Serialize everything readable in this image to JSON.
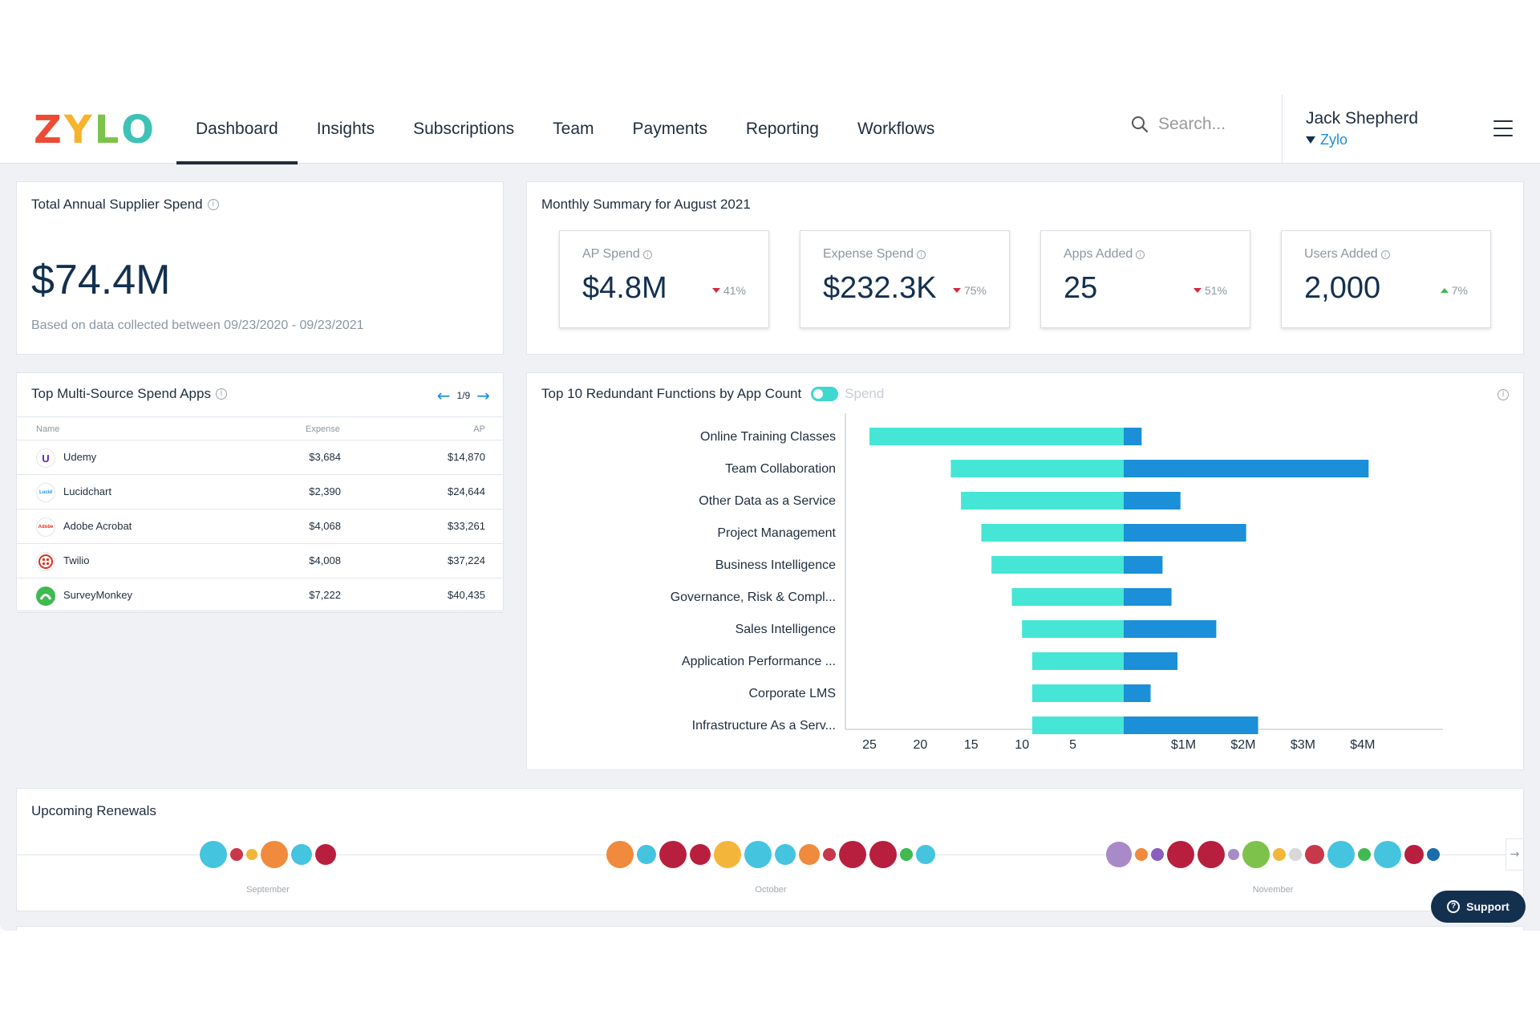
{
  "brand": {
    "logo_letters": [
      {
        "char": "Z",
        "color": "#ec4b35"
      },
      {
        "char": "Y",
        "color": "#f6b32b"
      },
      {
        "char": "L",
        "color": "#7dc24b"
      },
      {
        "char": "O",
        "color": "#3ec2b5"
      }
    ]
  },
  "nav": {
    "tabs": [
      {
        "label": "Dashboard",
        "active": true
      },
      {
        "label": "Insights"
      },
      {
        "label": "Subscriptions"
      },
      {
        "label": "Team"
      },
      {
        "label": "Payments"
      },
      {
        "label": "Reporting"
      },
      {
        "label": "Workflows"
      }
    ],
    "search_placeholder": "Search...",
    "user_name": "Jack Shepherd",
    "org_name": "Zylo"
  },
  "total_spend": {
    "title": "Total Annual Supplier Spend",
    "value": "$74.4M",
    "note": "Based on data collected between 09/23/2020 - 09/23/2021"
  },
  "monthly": {
    "title": "Monthly Summary for August 2021",
    "kpis": [
      {
        "label": "AP Spend",
        "value": "$4.8M",
        "delta": "41%",
        "direction": "down"
      },
      {
        "label": "Expense Spend",
        "value": "$232.3K",
        "delta": "75%",
        "direction": "down"
      },
      {
        "label": "Apps Added",
        "value": "25",
        "delta": "51%",
        "direction": "down"
      },
      {
        "label": "Users Added",
        "value": "2,000",
        "delta": "7%",
        "direction": "up"
      }
    ]
  },
  "multi_source": {
    "title": "Top Multi-Source Spend Apps",
    "pager": "1/9",
    "columns": [
      "Name",
      "Expense",
      "AP"
    ],
    "rows": [
      {
        "name": "Udemy",
        "expense": "$3,684",
        "ap": "$14,870",
        "icon": "udemy-icon",
        "icon_text": "U",
        "icon_color": "#5624d0"
      },
      {
        "name": "Lucidchart",
        "expense": "$2,390",
        "ap": "$24,644",
        "icon": "lucidchart-icon",
        "icon_text": "Lucid",
        "icon_color": "#1b8fd8"
      },
      {
        "name": "Adobe Acrobat",
        "expense": "$4,068",
        "ap": "$33,261",
        "icon": "adobe-icon",
        "icon_text": "Adobe",
        "icon_color": "#e0301e"
      },
      {
        "name": "Twilio",
        "expense": "$4,008",
        "ap": "$37,224",
        "icon": "twilio-icon",
        "icon_text": "",
        "icon_color": "#e0301e"
      },
      {
        "name": "SurveyMonkey",
        "expense": "$7,222",
        "ap": "$40,435",
        "icon": "surveymonkey-icon",
        "icon_text": "",
        "icon_color": "#3fb950"
      }
    ]
  },
  "redundant": {
    "title": "Top 10 Redundant Functions by App Count",
    "toggle_label": "Spend"
  },
  "chart_data": {
    "type": "bar",
    "orientation": "horizontal",
    "layout": "butterfly",
    "categories": [
      "Online Training Classes",
      "Team Collaboration",
      "Other Data as a Service",
      "Project Management",
      "Business Intelligence",
      "Governance, Risk & Compl...",
      "Sales Intelligence",
      "Application Performance ...",
      "Corporate LMS",
      "Infrastructure As a Serv..."
    ],
    "series": [
      {
        "values": [
          25,
          17,
          16,
          14,
          13,
          11,
          10,
          9,
          9,
          9
        ],
        "color": "#45e6d6",
        "side": "left"
      },
      {
        "values": [
          0.3,
          4.1,
          0.95,
          2.05,
          0.65,
          0.8,
          1.55,
          0.9,
          0.45,
          2.25
        ],
        "color": "#1b8fd8",
        "side": "right"
      }
    ],
    "left_axis": {
      "ticks": [
        25,
        20,
        15,
        10,
        5
      ],
      "tick_labels": [
        "25",
        "20",
        "15",
        "10",
        "5"
      ],
      "max": 25
    },
    "right_axis": {
      "ticks": [
        1,
        2,
        3,
        4
      ],
      "tick_labels": [
        "$1M",
        "$2M",
        "$3M",
        "$4M"
      ],
      "max": 4.7
    }
  },
  "renewals": {
    "title": "Upcoming Renewals",
    "months": [
      "September",
      "October",
      "November"
    ],
    "clusters": [
      [
        {
          "color": "#45c4e0",
          "d": 34
        },
        {
          "color": "#c8384a",
          "d": 16
        },
        {
          "color": "#f4b63a",
          "d": 14
        },
        {
          "color": "#f08a3c",
          "d": 34
        },
        {
          "color": "#45c4e0",
          "d": 26
        },
        {
          "color": "#b81f3e",
          "d": 26
        }
      ],
      [
        {
          "color": "#f08a3c",
          "d": 34
        },
        {
          "color": "#45c4e0",
          "d": 24
        },
        {
          "color": "#b81f3e",
          "d": 34
        },
        {
          "color": "#b81f3e",
          "d": 26
        },
        {
          "color": "#f4b63a",
          "d": 34
        },
        {
          "color": "#45c4e0",
          "d": 34
        },
        {
          "color": "#45c4e0",
          "d": 26
        },
        {
          "color": "#f08a3c",
          "d": 26
        },
        {
          "color": "#c8384a",
          "d": 16
        },
        {
          "color": "#b81f3e",
          "d": 34
        },
        {
          "color": "#b81f3e",
          "d": 34
        },
        {
          "color": "#3fb950",
          "d": 16
        },
        {
          "color": "#45c4e0",
          "d": 24
        }
      ],
      [
        {
          "color": "#a98ac9",
          "d": 32
        },
        {
          "color": "#f08a3c",
          "d": 16
        },
        {
          "color": "#8b5fbf",
          "d": 16
        },
        {
          "color": "#b81f3e",
          "d": 34
        },
        {
          "color": "#b81f3e",
          "d": 34
        },
        {
          "color": "#a98ac9",
          "d": 14
        },
        {
          "color": "#7dc24b",
          "d": 34
        },
        {
          "color": "#f4b63a",
          "d": 16
        },
        {
          "color": "#d8d8d8",
          "d": 16
        },
        {
          "color": "#c8384a",
          "d": 24
        },
        {
          "color": "#45c4e0",
          "d": 34
        },
        {
          "color": "#3fb950",
          "d": 16
        },
        {
          "color": "#45c4e0",
          "d": 34
        },
        {
          "color": "#b81f3e",
          "d": 24
        },
        {
          "color": "#1b6cab",
          "d": 16
        }
      ]
    ]
  },
  "support": {
    "label": "Support"
  }
}
